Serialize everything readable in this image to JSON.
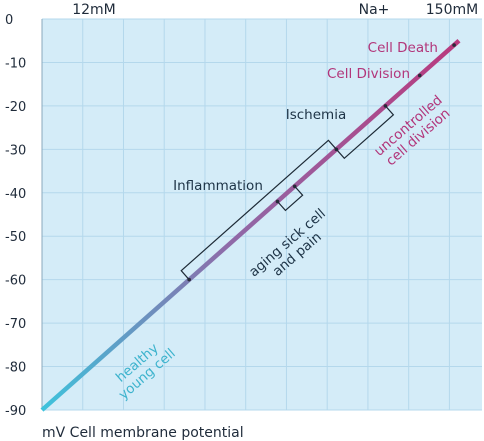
{
  "chart_data": {
    "type": "line",
    "xlabel": "mV Cell membrane potential",
    "x_tick_labels": [
      "12mM",
      "Na+",
      "150mM"
    ],
    "y_ticks": [
      0,
      -10,
      -20,
      -30,
      -40,
      -50,
      -60,
      -70,
      -80,
      -90
    ],
    "y_tick_labels": [
      "0",
      "-10",
      "-20",
      "-30",
      "-40",
      "-50",
      "-60",
      "-70",
      "-80",
      "-90"
    ],
    "ylim": [
      -90,
      0
    ],
    "grid": true,
    "line": {
      "start": -90,
      "end": -5,
      "color_start": "#3ec3dc",
      "color_mid": "#8f6aa8",
      "color_end": "#b93a7e"
    },
    "points": [
      {
        "y": -6,
        "label": "Cell Death",
        "style": "magenta"
      },
      {
        "y": -13,
        "label": "Cell Division",
        "style": "magenta"
      },
      {
        "y": -20
      },
      {
        "y": -30
      },
      {
        "y": -38.5
      },
      {
        "y": -42
      },
      {
        "y": -60
      }
    ],
    "brackets": [
      {
        "y_from": -30,
        "y_to": -20,
        "label": "Ischemia"
      },
      {
        "y_from": -42,
        "y_to": -38.5,
        "label": "Inflammation"
      },
      {
        "y_from": -60,
        "y_to": -30,
        "label_lines": [
          "aging sick cell",
          "and pain"
        ]
      }
    ],
    "region_labels": [
      {
        "lines": [
          "uncontrolled",
          "cell division"
        ],
        "style": "magenta"
      },
      {
        "lines": [
          "healthy",
          "young cell"
        ],
        "style": "cyan"
      }
    ],
    "colors": {
      "background": "#d4ecf8",
      "grid": "#b4d8ec",
      "dark_text": "#1d3346",
      "magenta": "#b2357a",
      "cyan": "#3db3cd"
    }
  }
}
